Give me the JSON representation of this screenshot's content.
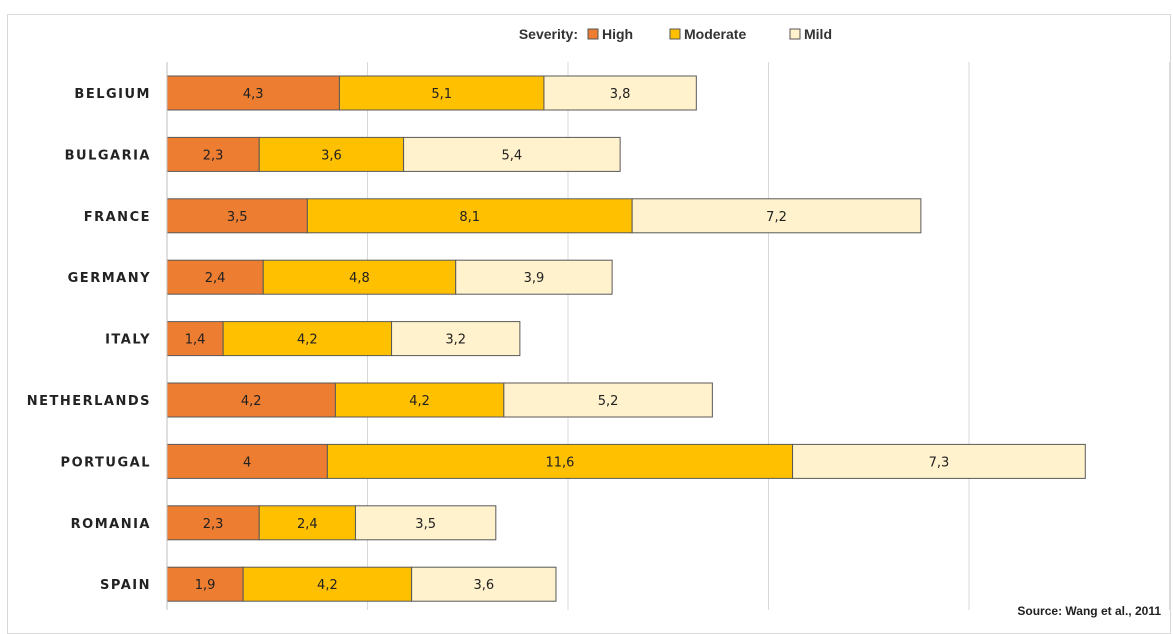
{
  "chart_data": {
    "type": "bar",
    "orientation": "horizontal",
    "stacked": true,
    "legend_title": "Severity:",
    "legend_placement": "top-center",
    "categories": [
      "BELGIUM",
      "BULGARIA",
      "FRANCE",
      "GERMANY",
      "ITALY",
      "NETHERLANDS",
      "PORTUGAL",
      "ROMANIA",
      "SPAIN"
    ],
    "series": [
      {
        "name": "High",
        "color": "#ED7D31",
        "values": [
          4.3,
          2.3,
          3.5,
          2.4,
          1.4,
          4.2,
          4,
          2.3,
          1.9
        ],
        "labels": [
          "4,3",
          "2,3",
          "3,5",
          "2,4",
          "1,4",
          "4,2",
          "4",
          "2,3",
          "1,9"
        ]
      },
      {
        "name": "Moderate",
        "color": "#FFC000",
        "values": [
          5.1,
          3.6,
          8.1,
          4.8,
          4.2,
          4.2,
          11.6,
          2.4,
          4.2
        ],
        "labels": [
          "5,1",
          "3,6",
          "8,1",
          "4,8",
          "4,2",
          "4,2",
          "11,6",
          "2,4",
          "4,2"
        ]
      },
      {
        "name": "Mild",
        "color": "#FFF2CC",
        "values": [
          3.8,
          5.4,
          7.2,
          3.9,
          3.2,
          5.2,
          7.3,
          3.5,
          3.6
        ],
        "labels": [
          "3,8",
          "5,4",
          "7,2",
          "3,9",
          "3,2",
          "5,2",
          "7,3",
          "3,5",
          "3,6"
        ]
      }
    ],
    "xlim": [
      0,
      25
    ],
    "grid": true,
    "source": "Source: Wang et al., 2011"
  }
}
